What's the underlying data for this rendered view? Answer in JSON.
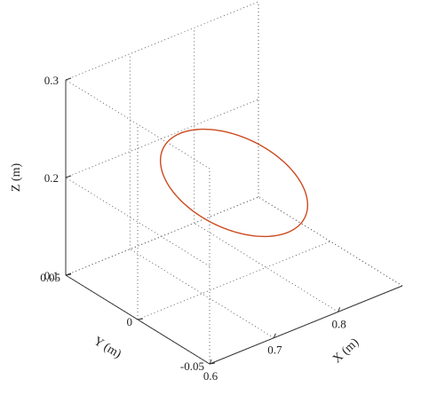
{
  "chart_data": {
    "type": "line3d",
    "title": "",
    "xlabel": "X (m)",
    "ylabel": "Y (m)",
    "zlabel": "Z (m)",
    "xlim": [
      0.6,
      0.9
    ],
    "ylim": [
      -0.05,
      0.05
    ],
    "zlim": [
      0.1,
      0.3
    ],
    "xticks": [
      0.6,
      0.7,
      0.8
    ],
    "yticks": [
      -0.05,
      0,
      0.05
    ],
    "zticks": [
      0.1,
      0.2,
      0.3
    ],
    "xtick_labels": [
      "0.6",
      "0.7",
      "0.8"
    ],
    "ytick_labels": [
      "-0.05",
      "0",
      "0.05"
    ],
    "ztick_labels": [
      "0.1",
      "0.2",
      "0.3"
    ],
    "grid": true,
    "curve_color": "#cc4a1f",
    "series": [
      {
        "shape": "circle",
        "center": [
          0.75,
          0.0,
          0.2
        ],
        "radius": 0.05,
        "normal": [
          1,
          1,
          0
        ]
      }
    ]
  }
}
